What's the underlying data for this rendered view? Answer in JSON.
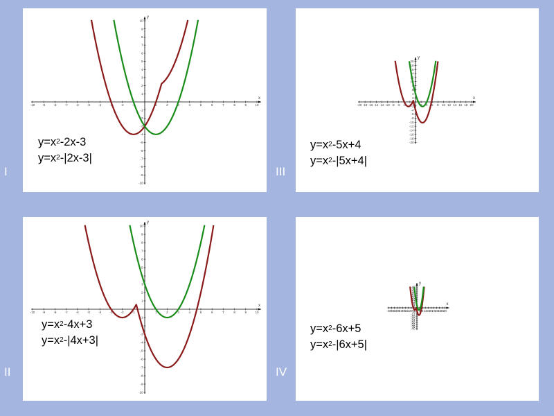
{
  "colors": {
    "background": "#a4b5e0",
    "panel": "#ffffff",
    "axis": "#000000",
    "red_curve": "#8b1a1a",
    "green_curve": "#1a8c1a"
  },
  "chart_data": [
    {
      "type": "line",
      "panel_label": "I",
      "x_axis_label": "x",
      "y_axis_label": "y",
      "xlim": [
        -10,
        10
      ],
      "ylim": [
        -10,
        10
      ],
      "x_ticks": [
        "-10",
        "-9",
        "-8",
        "-7",
        "-6",
        "-5",
        "-4",
        "-3",
        "-2",
        "-1",
        "1",
        "2",
        "3",
        "4",
        "5",
        "6",
        "7",
        "8",
        "9",
        "10"
      ],
      "y_ticks": [
        "-10",
        "-9",
        "-8",
        "-7",
        "-6",
        "-5",
        "-4",
        "-3",
        "-2",
        "-1",
        "1",
        "2",
        "3",
        "4",
        "5",
        "6",
        "7",
        "8",
        "9",
        "10"
      ],
      "grid": false,
      "series": [
        {
          "color": "red",
          "a": 2,
          "b": -3,
          "abs": true
        },
        {
          "color": "green",
          "a": -2,
          "b": -3,
          "abs": false
        }
      ],
      "equations": [
        {
          "prefix": "y=x",
          "sup": "2",
          "rest": "-2x-3"
        },
        {
          "prefix": "y=x",
          "sup": "2",
          "rest": "-|2x-3|"
        }
      ]
    },
    {
      "type": "line",
      "panel_label": "III",
      "x_axis_label": "x",
      "y_axis_label": "y",
      "xlim": [
        -20,
        20
      ],
      "ylim": [
        -20,
        20
      ],
      "x_ticks": [
        "-20",
        "-18",
        "-16",
        "-14",
        "-12",
        "-10",
        "-8",
        "-6",
        "-4",
        "-2",
        "2",
        "4",
        "6",
        "8",
        "10",
        "12",
        "14",
        "16",
        "18",
        "20"
      ],
      "y_ticks": [
        "-20",
        "-18",
        "-16",
        "-14",
        "-12",
        "-10",
        "-8",
        "-6",
        "-4",
        "-2",
        "2",
        "4",
        "6",
        "8",
        "10",
        "12",
        "14",
        "16",
        "18",
        "20"
      ],
      "grid": false,
      "series": [
        {
          "color": "red",
          "a": 5,
          "b": 4,
          "abs": true
        },
        {
          "color": "green",
          "a": -5,
          "b": 4,
          "abs": false
        }
      ],
      "equations": [
        {
          "prefix": "y=x",
          "sup": "2",
          "rest": "-5x+4"
        },
        {
          "prefix": "y=x",
          "sup": "2",
          "rest": "-|5x+4|"
        }
      ]
    },
    {
      "type": "line",
      "panel_label": "II",
      "x_axis_label": "x",
      "y_axis_label": "y",
      "xlim": [
        -10,
        10
      ],
      "ylim": [
        -10,
        10
      ],
      "x_ticks": [
        "-10",
        "-9",
        "-8",
        "-7",
        "-6",
        "-5",
        "-4",
        "-3",
        "-2",
        "-1",
        "1",
        "2",
        "3",
        "4",
        "5",
        "6",
        "7",
        "8",
        "9",
        "10"
      ],
      "y_ticks": [
        "-10",
        "-9",
        "-8",
        "-7",
        "-6",
        "-5",
        "-4",
        "-3",
        "-2",
        "-1",
        "1",
        "2",
        "3",
        "4",
        "5",
        "6",
        "7",
        "8",
        "9",
        "10"
      ],
      "grid": false,
      "series": [
        {
          "color": "red",
          "a": 4,
          "b": 3,
          "abs": true
        },
        {
          "color": "green",
          "a": -4,
          "b": 3,
          "abs": false
        }
      ],
      "equations": [
        {
          "prefix": "y=x",
          "sup": "2",
          "rest": "-4x+3"
        },
        {
          "prefix": "y=x",
          "sup": "2",
          "rest": "-|4x+3|"
        }
      ]
    },
    {
      "type": "line",
      "panel_label": "IV",
      "x_axis_label": "x",
      "y_axis_label": "y",
      "xlim": [
        -40,
        40
      ],
      "ylim": [
        -40,
        40
      ],
      "x_ticks": [
        "-40",
        "-36",
        "-32",
        "-28",
        "-24",
        "-20",
        "-16",
        "-12",
        "-8",
        "-4",
        "4",
        "8",
        "12",
        "16",
        "20",
        "24",
        "28",
        "32",
        "36",
        "40"
      ],
      "y_ticks": [
        "-40",
        "-36",
        "-32",
        "-28",
        "-24",
        "-20",
        "-16",
        "-12",
        "-8",
        "-4",
        "4",
        "8",
        "12",
        "16",
        "20",
        "24",
        "28",
        "32",
        "36",
        "40"
      ],
      "grid": false,
      "series": [
        {
          "color": "red",
          "a": 6,
          "b": 5,
          "abs": true
        },
        {
          "color": "green",
          "a": -6,
          "b": 5,
          "abs": false
        }
      ],
      "equations": [
        {
          "prefix": "y=x",
          "sup": "2",
          "rest": "-6x+5"
        },
        {
          "prefix": "y=x",
          "sup": "2",
          "rest": "-|6x+5|"
        }
      ]
    }
  ]
}
